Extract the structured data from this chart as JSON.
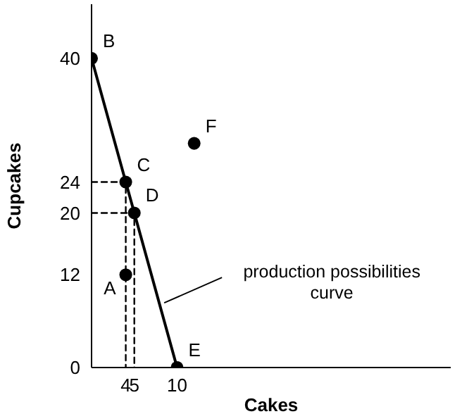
{
  "chart_data": {
    "type": "scatter",
    "xlabel": "Cakes",
    "ylabel": "Cupcakes",
    "xlim": [
      0,
      42
    ],
    "ylim": [
      0,
      47
    ],
    "xticks": [
      4,
      5,
      10
    ],
    "yticks": [
      0,
      12,
      20,
      24,
      40
    ],
    "grid": false,
    "marker": "circle",
    "series": [
      {
        "type": "line",
        "color": "#000000",
        "x": [
          0,
          10
        ],
        "values": [
          40,
          0
        ],
        "line_style": "solid",
        "marker": "none"
      },
      {
        "type": "line",
        "color": "#000000",
        "x": [
          0,
          4,
          4
        ],
        "values": [
          24,
          24,
          0
        ],
        "line_style": "dashed",
        "marker": "none"
      },
      {
        "type": "line",
        "color": "#000000",
        "x": [
          0,
          5,
          5
        ],
        "values": [
          20,
          20,
          0
        ],
        "line_style": "dashed",
        "marker": "none"
      },
      {
        "color": "#000000",
        "x": [
          0,
          4,
          5,
          10,
          4,
          12
        ],
        "values": [
          40,
          24,
          20,
          0,
          12,
          29
        ]
      }
    ],
    "annotations": [
      {
        "text": "B",
        "x": 0,
        "y": 40
      },
      {
        "text": "C",
        "x": 4,
        "y": 24
      },
      {
        "text": "D",
        "x": 5,
        "y": 20
      },
      {
        "text": "A",
        "x": 4,
        "y": 12
      },
      {
        "text": "E",
        "x": 10,
        "y": 0
      },
      {
        "text": "F",
        "x": 12,
        "y": 29
      },
      {
        "text": "production possibilities curve",
        "x": 8,
        "y": 8
      }
    ]
  }
}
